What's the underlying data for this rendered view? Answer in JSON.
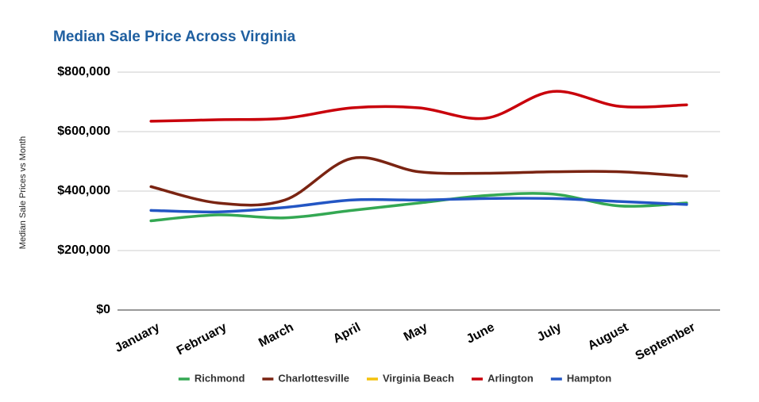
{
  "chart_data": {
    "type": "line",
    "title": "Median Sale Price Across Virginia",
    "y_label": "Median Sale Prices vs Month",
    "categories": [
      "January",
      "February",
      "March",
      "April",
      "May",
      "June",
      "July",
      "August",
      "September"
    ],
    "series": [
      {
        "name": "Richmond",
        "color": "#34a853",
        "values": [
          300000,
          320000,
          310000,
          335000,
          360000,
          385000,
          390000,
          350000,
          360000
        ]
      },
      {
        "name": "Charlottesville",
        "color": "#7a2412",
        "values": [
          415000,
          360000,
          370000,
          510000,
          465000,
          460000,
          465000,
          465000,
          450000
        ]
      },
      {
        "name": "Virginia Beach",
        "color": "#f4c20d",
        "values": [
          null,
          null,
          null,
          null,
          null,
          null,
          null,
          null,
          null
        ]
      },
      {
        "name": "Arlington",
        "color": "#c9000b",
        "values": [
          635000,
          640000,
          645000,
          680000,
          680000,
          645000,
          735000,
          685000,
          690000
        ]
      },
      {
        "name": "Hampton",
        "color": "#2356c4",
        "values": [
          335000,
          330000,
          345000,
          370000,
          370000,
          375000,
          375000,
          365000,
          355000
        ]
      }
    ],
    "ylim": [
      0,
      800000
    ],
    "yticks": [
      {
        "value": 0,
        "label": "$0"
      },
      {
        "value": 200000,
        "label": "$200,000"
      },
      {
        "value": 400000,
        "label": "$400,000"
      },
      {
        "value": 600000,
        "label": "$600,000"
      },
      {
        "value": 800000,
        "label": "$800,000"
      }
    ],
    "grid": true,
    "legend": "bottom"
  }
}
